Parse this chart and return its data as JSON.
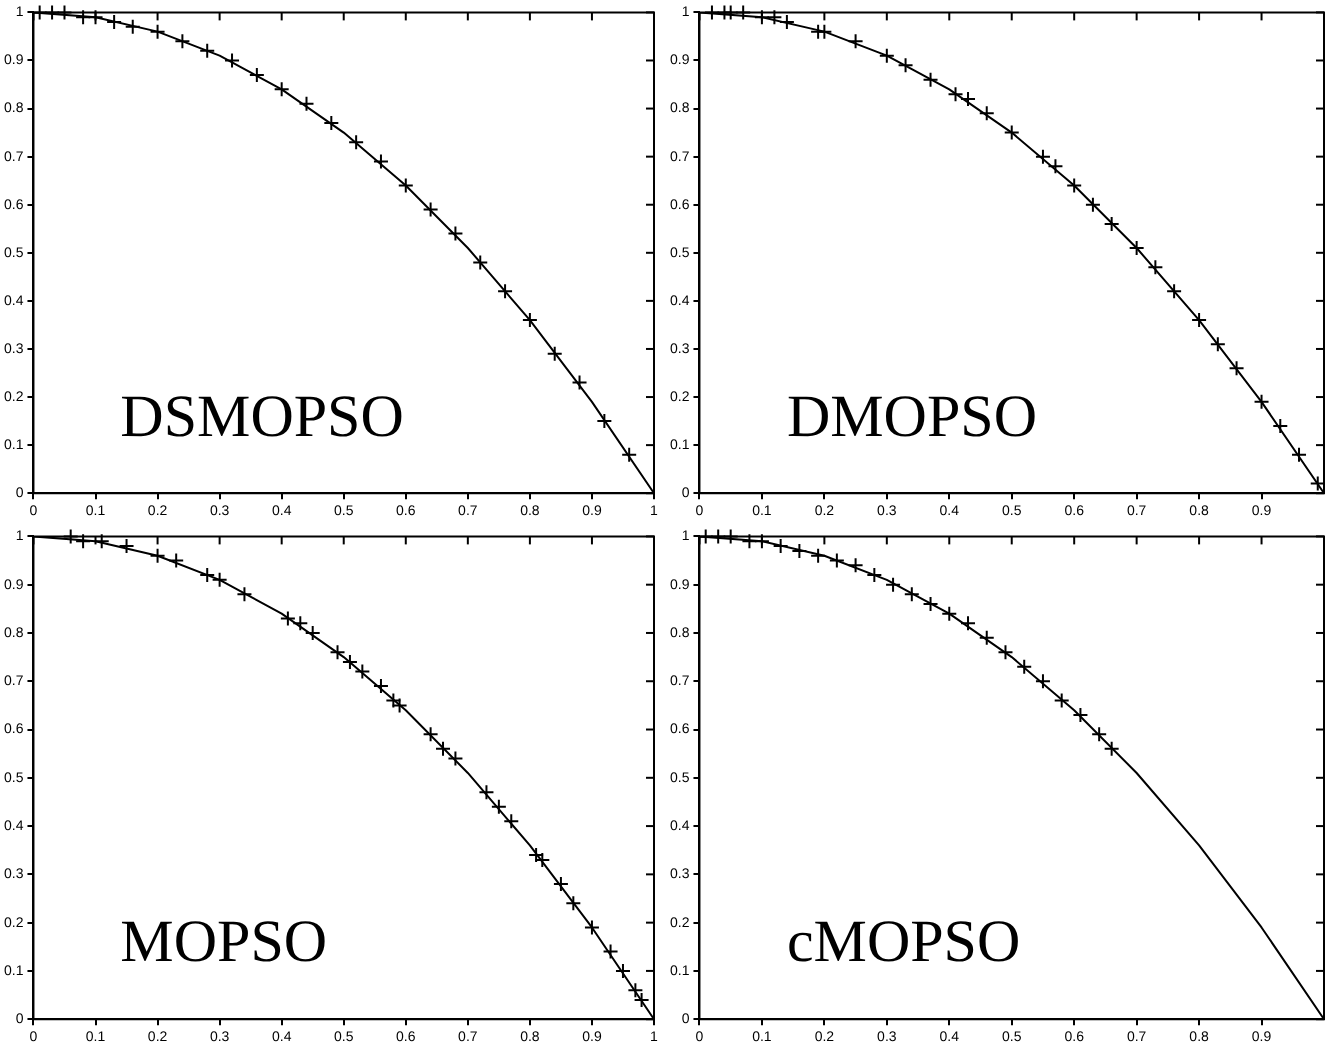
{
  "chart_data": [
    {
      "type": "scatter",
      "annotations": [
        "DSMOPSO"
      ],
      "xlim": [
        0,
        1
      ],
      "ylim": [
        0,
        1
      ],
      "xticks": [
        0,
        0.1,
        0.2,
        0.3,
        0.4,
        0.5,
        0.6,
        0.7,
        0.8,
        0.9,
        1
      ],
      "yticks": [
        0,
        0.1,
        0.2,
        0.3,
        0.4,
        0.5,
        0.6,
        0.7,
        0.8,
        0.9,
        1
      ],
      "series": [
        {
          "type": "line",
          "marker": "none",
          "color": "#000000",
          "x": [
            0,
            0.1,
            0.2,
            0.3,
            0.4,
            0.5,
            0.6,
            0.7,
            0.8,
            0.9,
            1
          ],
          "values": [
            1,
            0.99,
            0.96,
            0.91,
            0.84,
            0.75,
            0.64,
            0.51,
            0.36,
            0.19,
            0
          ]
        },
        {
          "marker": "cross",
          "color": "#000000",
          "x": [
            0.01,
            0.03,
            0.05,
            0.08,
            0.1,
            0.13,
            0.16,
            0.2,
            0.24,
            0.28,
            0.32,
            0.36,
            0.4,
            0.44,
            0.48,
            0.52,
            0.56,
            0.6,
            0.64,
            0.68,
            0.72,
            0.76,
            0.8,
            0.84,
            0.88,
            0.92,
            0.96
          ],
          "values": [
            1.0,
            1.0,
            1.0,
            0.99,
            0.99,
            0.98,
            0.97,
            0.96,
            0.94,
            0.92,
            0.9,
            0.87,
            0.84,
            0.81,
            0.77,
            0.73,
            0.69,
            0.64,
            0.59,
            0.54,
            0.48,
            0.42,
            0.36,
            0.29,
            0.23,
            0.15,
            0.08
          ]
        }
      ]
    },
    {
      "type": "scatter",
      "annotations": [
        "DMOPSO"
      ],
      "xlim": [
        0,
        1
      ],
      "ylim": [
        0,
        1
      ],
      "xticks": [
        0,
        0.1,
        0.2,
        0.3,
        0.4,
        0.5,
        0.6,
        0.7,
        0.8,
        0.9
      ],
      "yticks": [
        0,
        0.1,
        0.2,
        0.3,
        0.4,
        0.5,
        0.6,
        0.7,
        0.8,
        0.9,
        1
      ],
      "series": [
        {
          "type": "line",
          "marker": "none",
          "color": "#000000",
          "x": [
            0,
            0.1,
            0.2,
            0.3,
            0.4,
            0.5,
            0.6,
            0.7,
            0.8,
            0.9,
            1
          ],
          "values": [
            1,
            0.99,
            0.96,
            0.91,
            0.84,
            0.75,
            0.64,
            0.51,
            0.36,
            0.19,
            0
          ]
        },
        {
          "marker": "cross",
          "color": "#000000",
          "x": [
            0.02,
            0.04,
            0.05,
            0.07,
            0.1,
            0.12,
            0.14,
            0.19,
            0.2,
            0.25,
            0.3,
            0.33,
            0.37,
            0.41,
            0.43,
            0.46,
            0.5,
            0.55,
            0.57,
            0.6,
            0.63,
            0.66,
            0.7,
            0.73,
            0.76,
            0.8,
            0.83,
            0.86,
            0.9,
            0.93,
            0.96,
            0.99
          ],
          "values": [
            1.0,
            1.0,
            1.0,
            1.0,
            0.99,
            0.99,
            0.98,
            0.96,
            0.96,
            0.94,
            0.91,
            0.89,
            0.86,
            0.83,
            0.82,
            0.79,
            0.75,
            0.7,
            0.68,
            0.64,
            0.6,
            0.56,
            0.51,
            0.47,
            0.42,
            0.36,
            0.31,
            0.26,
            0.19,
            0.14,
            0.08,
            0.02
          ]
        }
      ]
    },
    {
      "type": "scatter",
      "annotations": [
        "MOPSO"
      ],
      "xlim": [
        0,
        1
      ],
      "ylim": [
        0,
        1
      ],
      "xticks": [
        0,
        0.1,
        0.2,
        0.3,
        0.4,
        0.5,
        0.6,
        0.7,
        0.8,
        0.9,
        1
      ],
      "yticks": [
        0,
        0.1,
        0.2,
        0.3,
        0.4,
        0.5,
        0.6,
        0.7,
        0.8,
        0.9,
        1
      ],
      "series": [
        {
          "type": "line",
          "marker": "none",
          "color": "#000000",
          "x": [
            0,
            0.1,
            0.2,
            0.3,
            0.4,
            0.5,
            0.6,
            0.7,
            0.8,
            0.9,
            1
          ],
          "values": [
            1,
            0.99,
            0.96,
            0.91,
            0.84,
            0.75,
            0.64,
            0.51,
            0.36,
            0.19,
            0
          ]
        },
        {
          "marker": "cross",
          "color": "#000000",
          "x": [
            0.06,
            0.08,
            0.11,
            0.15,
            0.2,
            0.23,
            0.28,
            0.3,
            0.34,
            0.41,
            0.43,
            0.45,
            0.49,
            0.51,
            0.53,
            0.56,
            0.58,
            0.59,
            0.64,
            0.66,
            0.68,
            0.73,
            0.75,
            0.77,
            0.81,
            0.82,
            0.85,
            0.87,
            0.9,
            0.93,
            0.95,
            0.97,
            0.98
          ],
          "values": [
            1.0,
            0.99,
            0.99,
            0.98,
            0.96,
            0.95,
            0.92,
            0.91,
            0.88,
            0.83,
            0.82,
            0.8,
            0.76,
            0.74,
            0.72,
            0.69,
            0.66,
            0.65,
            0.59,
            0.56,
            0.54,
            0.47,
            0.44,
            0.41,
            0.34,
            0.33,
            0.28,
            0.24,
            0.19,
            0.14,
            0.1,
            0.06,
            0.04
          ]
        }
      ]
    },
    {
      "type": "scatter",
      "annotations": [
        "cMOPSO"
      ],
      "xlim": [
        0,
        1
      ],
      "ylim": [
        0,
        1
      ],
      "xticks": [
        0,
        0.1,
        0.2,
        0.3,
        0.4,
        0.5,
        0.6,
        0.7,
        0.8,
        0.9
      ],
      "yticks": [
        0,
        0.1,
        0.2,
        0.3,
        0.4,
        0.5,
        0.6,
        0.7,
        0.8,
        0.9,
        1
      ],
      "series": [
        {
          "type": "line",
          "marker": "none",
          "color": "#000000",
          "x": [
            0,
            0.1,
            0.2,
            0.3,
            0.4,
            0.5,
            0.6,
            0.7,
            0.8,
            0.9,
            1
          ],
          "values": [
            1,
            0.99,
            0.96,
            0.91,
            0.84,
            0.75,
            0.64,
            0.51,
            0.36,
            0.19,
            0
          ]
        },
        {
          "marker": "cross",
          "color": "#000000",
          "x": [
            0.01,
            0.03,
            0.05,
            0.08,
            0.1,
            0.13,
            0.16,
            0.19,
            0.22,
            0.25,
            0.28,
            0.31,
            0.34,
            0.37,
            0.4,
            0.43,
            0.46,
            0.49,
            0.52,
            0.55,
            0.58,
            0.61,
            0.64,
            0.66
          ],
          "values": [
            1.0,
            1.0,
            1.0,
            0.99,
            0.99,
            0.98,
            0.97,
            0.96,
            0.95,
            0.94,
            0.92,
            0.9,
            0.88,
            0.86,
            0.84,
            0.82,
            0.79,
            0.76,
            0.73,
            0.7,
            0.66,
            0.63,
            0.59,
            0.56
          ]
        }
      ]
    }
  ]
}
